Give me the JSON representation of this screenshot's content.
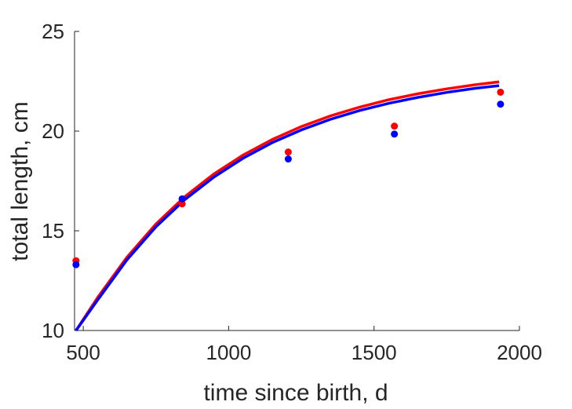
{
  "chart_data": {
    "type": "scatter",
    "title": "",
    "xlabel": "time since birth, d",
    "ylabel": "total length, cm",
    "xlim": [
      470,
      2000
    ],
    "ylim": [
      10,
      25
    ],
    "xticks": [
      500,
      1000,
      1500,
      2000
    ],
    "yticks": [
      10,
      15,
      20,
      25
    ],
    "grid": false,
    "legend": "none",
    "series": [
      {
        "kind": "points",
        "color": "#ff0000",
        "x": [
          475,
          840,
          1205,
          1570,
          1935
        ],
        "y": [
          13.5,
          16.35,
          18.95,
          20.25,
          21.95
        ]
      },
      {
        "kind": "points",
        "color": "#0000ff",
        "x": [
          475,
          840,
          1205,
          1570,
          1935
        ],
        "y": [
          13.3,
          16.6,
          18.6,
          19.85,
          21.35
        ]
      },
      {
        "kind": "line",
        "color": "#ff0000",
        "x": [
          475,
          550,
          650,
          750,
          850,
          950,
          1050,
          1150,
          1250,
          1350,
          1450,
          1550,
          1650,
          1750,
          1850,
          1930
        ],
        "y": [
          9.9,
          11.66,
          13.67,
          15.34,
          16.72,
          17.86,
          18.8,
          19.58,
          20.23,
          20.76,
          21.2,
          21.57,
          21.87,
          22.12,
          22.33,
          22.47
        ]
      },
      {
        "kind": "line",
        "color": "#0000ff",
        "x": [
          475,
          550,
          650,
          750,
          850,
          950,
          1050,
          1150,
          1250,
          1350,
          1450,
          1550,
          1650,
          1750,
          1850,
          1930
        ],
        "y": [
          9.75,
          11.54,
          13.54,
          15.2,
          16.57,
          17.7,
          18.64,
          19.42,
          20.06,
          20.59,
          21.03,
          21.39,
          21.69,
          21.94,
          22.15,
          22.28
        ]
      }
    ]
  }
}
